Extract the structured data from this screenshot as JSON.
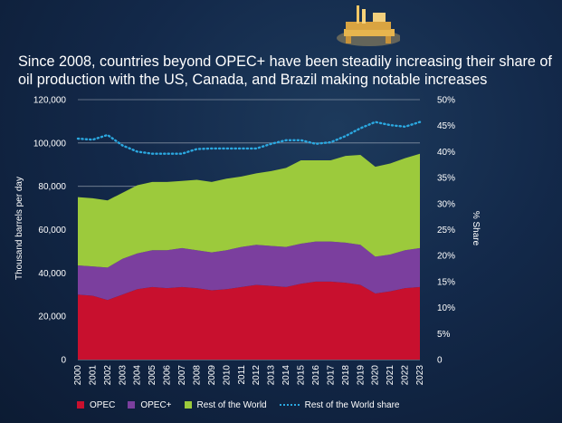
{
  "chart_data": {
    "type": "area",
    "title": "Since 2008, countries beyond OPEC+ have been steadily increasing their share of oil production with the US, Canada, and Brazil making notable increases",
    "ylabel": "Thousand barrels per day",
    "y2label": "% Share",
    "ylim": [
      0,
      120000
    ],
    "y2lim": [
      0,
      50
    ],
    "yticks": [
      "0",
      "20,000",
      "40,000",
      "60,000",
      "80,000",
      "100,000",
      "120,000"
    ],
    "y2ticks": [
      "0",
      "5%",
      "10%",
      "15%",
      "20%",
      "25%",
      "30%",
      "35%",
      "40%",
      "45%",
      "50%"
    ],
    "categories": [
      "2000",
      "2001",
      "2002",
      "2003",
      "2004",
      "2005",
      "2006",
      "2007",
      "2008",
      "2009",
      "2010",
      "2011",
      "2012",
      "2013",
      "2014",
      "2015",
      "2016",
      "2017",
      "2018",
      "2019",
      "2020",
      "2021",
      "2022",
      "2023"
    ],
    "series": [
      {
        "name": "OPEC",
        "color": "#c8102e",
        "values": [
          30000,
          29500,
          27500,
          30000,
          32500,
          33500,
          33000,
          33500,
          33000,
          32000,
          32500,
          33500,
          34500,
          34000,
          33500,
          35000,
          36000,
          36000,
          35500,
          34500,
          30500,
          31500,
          33000,
          33500
        ]
      },
      {
        "name": "OPEC+",
        "color": "#7b3f9e",
        "values": [
          13500,
          13500,
          15000,
          16500,
          16500,
          17000,
          17500,
          18000,
          17500,
          17500,
          18000,
          18500,
          18500,
          18500,
          18500,
          18500,
          18500,
          18500,
          18500,
          18500,
          17000,
          17000,
          17500,
          18000
        ]
      },
      {
        "name": "Rest of the World",
        "color": "#9cca3c",
        "values": [
          31500,
          31500,
          31000,
          30500,
          31500,
          31500,
          31500,
          31000,
          32500,
          32500,
          33000,
          32500,
          33000,
          34500,
          36500,
          38500,
          37500,
          37500,
          40000,
          41500,
          41500,
          42000,
          42500,
          43500
        ]
      },
      {
        "name": "Rest of the World share",
        "color": "#2ba8e0",
        "style": "dotted",
        "axis": "y2",
        "values": [
          42.5,
          42.3,
          43.2,
          41.2,
          40.0,
          39.6,
          39.6,
          39.6,
          40.5,
          40.6,
          40.6,
          40.6,
          40.6,
          41.5,
          42.2,
          42.2,
          41.5,
          41.8,
          43.0,
          44.5,
          45.7,
          45.1,
          44.8,
          45.7
        ]
      }
    ]
  },
  "legend": {
    "opec": "OPEC",
    "opec_plus": "OPEC+",
    "row": "Rest of the World",
    "row_share": "Rest of the World share"
  }
}
